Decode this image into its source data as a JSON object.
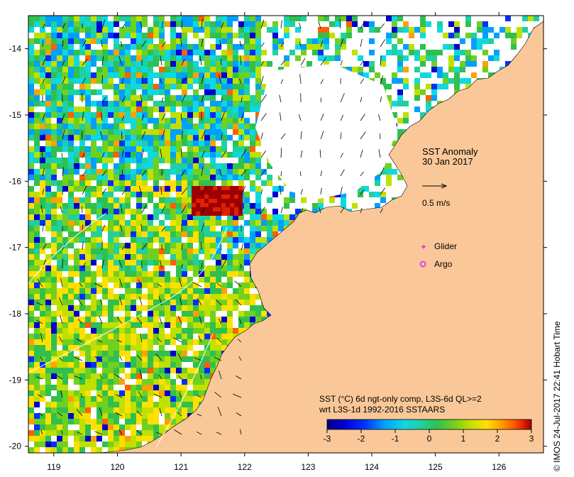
{
  "map": {
    "title": "SST Anomaly",
    "date": "30 Jan 2017",
    "velocity_scale_label": "0.5 m/s",
    "legend": [
      {
        "label": "Glider",
        "color": "#e040e0",
        "marker": "plus"
      },
      {
        "label": "Argo",
        "color": "#e040e0",
        "marker": "circle"
      }
    ],
    "colorbar": {
      "caption_line1": "SST (°C) 6d ngt-only comp, L3S-6d QL>=2",
      "caption_line2": "wrt L3S-1d 1992-2016 SSTAARS",
      "ticks": [
        "-3",
        "-2",
        "-1",
        "0",
        "1",
        "2",
        "3"
      ],
      "colors": [
        "#00007f",
        "#0000d0",
        "#0030ff",
        "#00a0ff",
        "#10d8e0",
        "#20d0a0",
        "#30c050",
        "#70d020",
        "#c0e000",
        "#ffe000",
        "#ffa000",
        "#ff6000",
        "#e02000",
        "#9c0000"
      ]
    },
    "x_ticks": [
      "119",
      "120",
      "121",
      "122",
      "123",
      "124",
      "125",
      "126"
    ],
    "y_ticks": [
      "-14",
      "-15",
      "-16",
      "-17",
      "-18",
      "-19",
      "-20"
    ],
    "lon_range": [
      118.6,
      126.7
    ],
    "lat_range": [
      -20.1,
      -13.5
    ],
    "land_color": "#fac898",
    "credit": "© IMOS 24-Jul-2017 22:41 Hobart Time"
  }
}
